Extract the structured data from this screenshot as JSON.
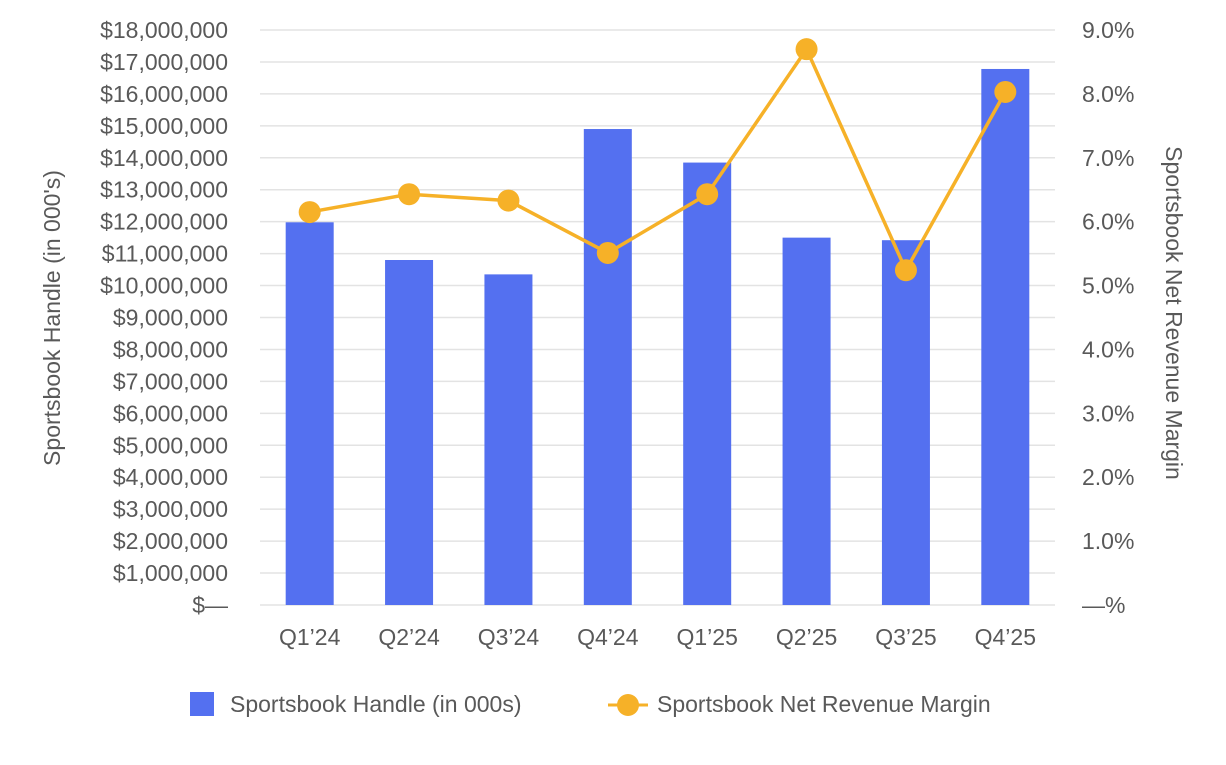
{
  "chart_data": {
    "type": "bar+line",
    "categories": [
      "Q1’24",
      "Q2’24",
      "Q3’24",
      "Q4’24",
      "Q1’25",
      "Q2’25",
      "Q3’25",
      "Q4’25"
    ],
    "series": [
      {
        "name": "Sportsbook Handle (in 000s)",
        "type": "bar",
        "axis": "left",
        "color": "#5470f0",
        "values": [
          11980000,
          10800000,
          10350000,
          14900000,
          13850000,
          11500000,
          11420000,
          16780000
        ]
      },
      {
        "name": "Sportsbook Net Revenue Margin",
        "type": "line",
        "axis": "right",
        "color": "#f6b128",
        "values": [
          6.15,
          6.43,
          6.33,
          5.51,
          6.43,
          8.7,
          5.24,
          8.03
        ]
      }
    ],
    "y_left": {
      "title": "Sportsbook Handle (in 000's)",
      "min": 0,
      "max": 18000000,
      "tick_labels": [
        "$—",
        "$1,000,000",
        "$2,000,000",
        "$3,000,000",
        "$4,000,000",
        "$5,000,000",
        "$6,000,000",
        "$7,000,000",
        "$8,000,000",
        "$9,000,000",
        "$10,000,000",
        "$11,000,000",
        "$12,000,000",
        "$13,000,000",
        "$14,000,000",
        "$15,000,000",
        "$16,000,000",
        "$17,000,000",
        "$18,000,000"
      ]
    },
    "y_right": {
      "title": "Sportsbook Net Revenue Margin",
      "min": 0,
      "max": 9,
      "tick_labels": [
        "—%",
        "1.0%",
        "2.0%",
        "3.0%",
        "4.0%",
        "5.0%",
        "6.0%",
        "7.0%",
        "8.0%",
        "9.0%"
      ]
    },
    "grid": true,
    "legend_position": "bottom"
  },
  "colors": {
    "grid": "#e3e3e3",
    "text": "#595959"
  }
}
